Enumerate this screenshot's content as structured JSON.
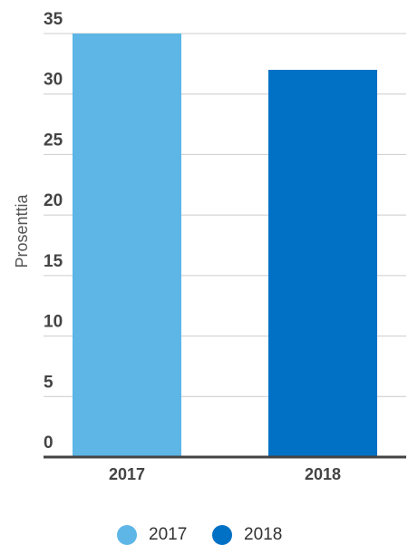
{
  "chart_data": {
    "type": "bar",
    "y_label": "Prosenttia",
    "categories": [
      "2017",
      "2018"
    ],
    "values": [
      35,
      32
    ],
    "colors": [
      "#5db6e6",
      "#0071c5"
    ],
    "ylim": [
      0,
      35
    ],
    "yticks": [
      0,
      5,
      10,
      15,
      20,
      25,
      30,
      35
    ],
    "grid": true,
    "legend": "bottom"
  }
}
